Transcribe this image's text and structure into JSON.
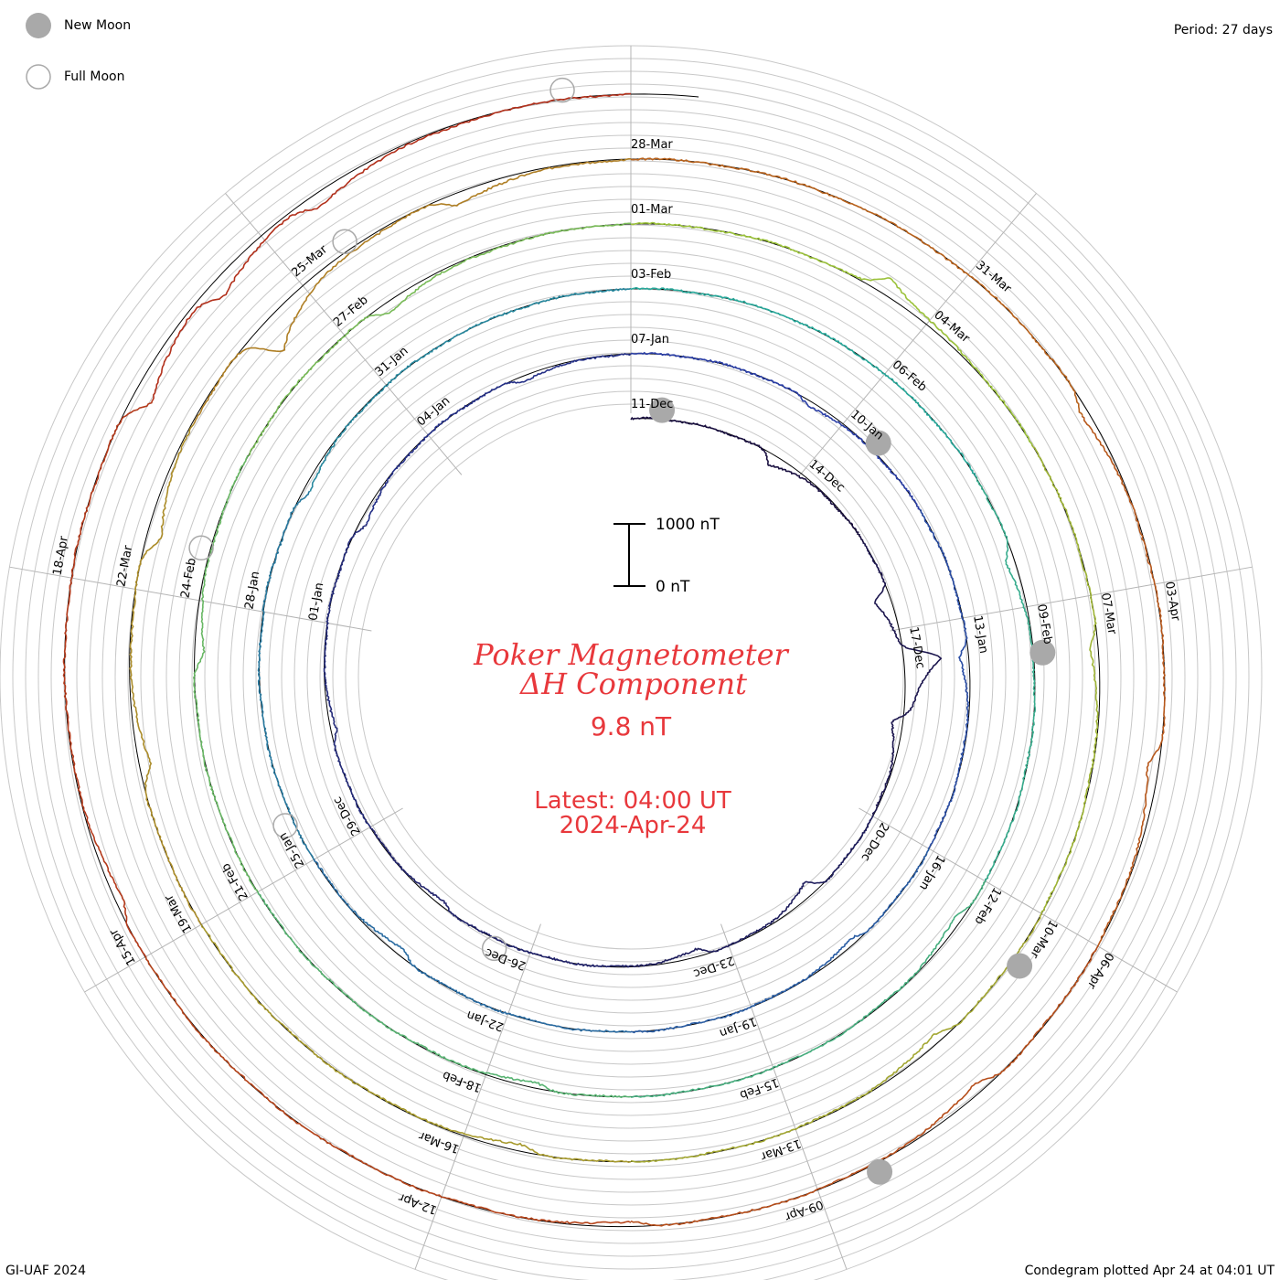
{
  "legend": {
    "new_moon_label": "New Moon",
    "full_moon_label": "Full Moon",
    "period_label": "Period: 27 days"
  },
  "title": {
    "line1": "Poker Magnetometer",
    "line2": "ΔH Component",
    "value": "9.8 nT",
    "latest": "Latest: 04:00 UT",
    "date": "2024-Apr-24"
  },
  "scale_bar": {
    "top_label": "1000 nT",
    "bottom_label": "0 nT"
  },
  "footer": {
    "left": "GI-UAF 2024",
    "right": "Condegram plotted Apr 24 at 04:01 UT"
  },
  "colors": {
    "title": "#e8383c",
    "grid": "#c8c8c8",
    "radial": "#b4b4b4",
    "moon_fill": "#a9a9a9",
    "moon_ring": "#a9a9a9"
  },
  "chart_data": {
    "type": "line",
    "title": "Poker Magnetometer ΔH Component",
    "period_days": 27,
    "turns": [
      {
        "date_labels": [
          "11-Dec",
          "14-Dec",
          "17-Dec",
          "20-Dec",
          "23-Dec",
          "26-Dec",
          "29-Dec",
          "01-Jan",
          "04-Jan"
        ],
        "color": "#1a1040"
      },
      {
        "date_labels": [
          "07-Jan",
          "10-Jan",
          "13-Jan",
          "16-Jan",
          "19-Jan",
          "22-Jan",
          "25-Jan",
          "28-Jan",
          "31-Jan"
        ],
        "color": "#2a3ea6"
      },
      {
        "date_labels": [
          "03-Feb",
          "06-Feb",
          "09-Feb",
          "12-Feb",
          "15-Feb",
          "18-Feb",
          "21-Feb",
          "24-Feb",
          "27-Feb"
        ],
        "color": "#27a89a"
      },
      {
        "date_labels": [
          "01-Mar",
          "04-Mar",
          "07-Mar",
          "10-Mar",
          "13-Mar",
          "16-Mar",
          "19-Mar",
          "22-Mar",
          "25-Mar"
        ],
        "color": "#9bc23a"
      },
      {
        "date_labels": [
          "28-Mar",
          "31-Mar",
          "03-Apr",
          "06-Apr",
          "09-Apr",
          "12-Apr",
          "15-Apr",
          "18-Apr"
        ],
        "color": "#b8621c"
      }
    ],
    "final_segment_color": "#b01a1a",
    "new_moon_dates": [
      "11-Dec",
      "10-Jan",
      "09-Feb",
      "10-Mar",
      "08-Apr"
    ],
    "full_moon_dates": [
      "26-Dec",
      "25-Jan",
      "24-Feb",
      "25-Mar",
      "23-Apr"
    ],
    "events": [
      {
        "date": "13-Dec",
        "dh": -180
      },
      {
        "date": "16-Dec",
        "dh": -260
      },
      {
        "date": "17-Dec",
        "dh": 620
      },
      {
        "date": "18-Dec",
        "dh": -240
      },
      {
        "date": "21-Dec",
        "dh": -220
      },
      {
        "date": "23-Dec",
        "dh": -120
      },
      {
        "date": "27-Dec",
        "dh": -80
      },
      {
        "date": "30-Dec",
        "dh": -90
      },
      {
        "date": "02-Jan",
        "dh": -110
      },
      {
        "date": "05-Jan",
        "dh": -90
      },
      {
        "date": "09-Jan",
        "dh": -80
      },
      {
        "date": "13-Jan",
        "dh": -140
      },
      {
        "date": "17-Jan",
        "dh": -90
      },
      {
        "date": "23-Jan",
        "dh": -120
      },
      {
        "date": "29-Jan",
        "dh": -100
      },
      {
        "date": "08-Feb",
        "dh": -140
      },
      {
        "date": "12-Feb",
        "dh": -120
      },
      {
        "date": "17-Feb",
        "dh": -90
      },
      {
        "date": "23-Feb",
        "dh": -150
      },
      {
        "date": "27-Feb",
        "dh": -160
      },
      {
        "date": "03-Mar",
        "dh": 260
      },
      {
        "date": "07-Mar",
        "dh": -130
      },
      {
        "date": "11-Mar",
        "dh": -140
      },
      {
        "date": "15-Mar",
        "dh": -110
      },
      {
        "date": "20-Mar",
        "dh": -180
      },
      {
        "date": "22-Mar",
        "dh": -230
      },
      {
        "date": "24-Mar",
        "dh": -520
      },
      {
        "date": "26-Mar",
        "dh": -180
      },
      {
        "date": "01-Apr",
        "dh": -120
      },
      {
        "date": "04-Apr",
        "dh": -180
      },
      {
        "date": "07-Apr",
        "dh": -150
      },
      {
        "date": "10-Apr",
        "dh": -80
      },
      {
        "date": "15-Apr",
        "dh": -130
      },
      {
        "date": "19-Apr",
        "dh": -310
      },
      {
        "date": "20-Apr",
        "dh": -240
      },
      {
        "date": "21-Apr",
        "dh": -180
      }
    ],
    "scale": {
      "label_top": "1000 nT",
      "label_bottom": "0 nT"
    }
  }
}
